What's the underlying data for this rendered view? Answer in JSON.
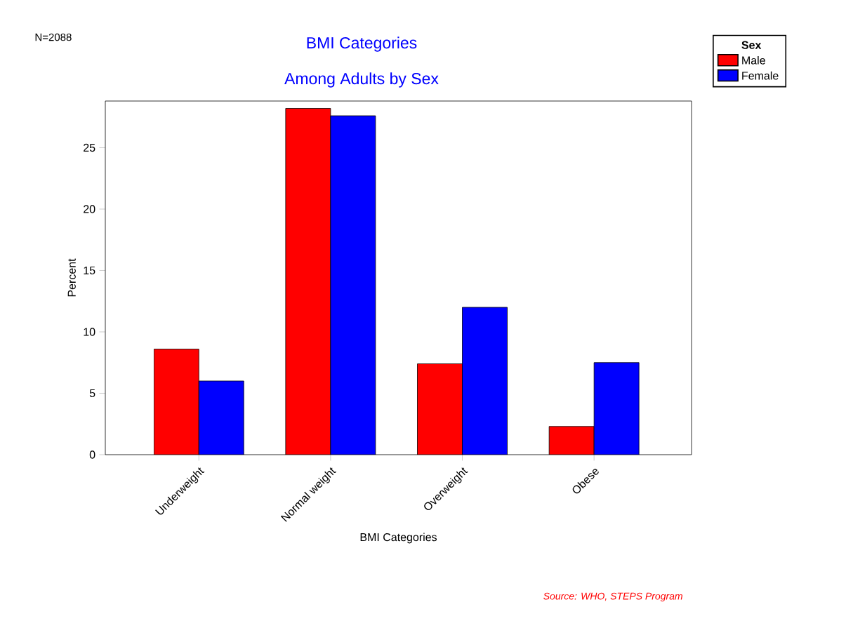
{
  "chart_data": {
    "type": "bar",
    "title": "BMI Categories",
    "subtitle": "Among Adults by Sex",
    "xlabel": "BMI Categories",
    "ylabel": "Percent",
    "legend_title": "Sex",
    "categories": [
      "Underweight",
      "Normal weight",
      "Overweight",
      "Obese"
    ],
    "series": [
      {
        "name": "Male",
        "color": "#ff0000",
        "values": [
          8.6,
          28.2,
          7.4,
          2.3
        ]
      },
      {
        "name": "Female",
        "color": "#0000ff",
        "values": [
          6.0,
          27.6,
          12.0,
          7.5
        ]
      }
    ],
    "ylim": [
      0,
      28.8
    ],
    "yticks": [
      0,
      5,
      10,
      15,
      20,
      25
    ],
    "grid": false,
    "legend": "top right",
    "annotations": [
      "N=2088",
      "Source:  WHO, STEPS Program"
    ]
  }
}
